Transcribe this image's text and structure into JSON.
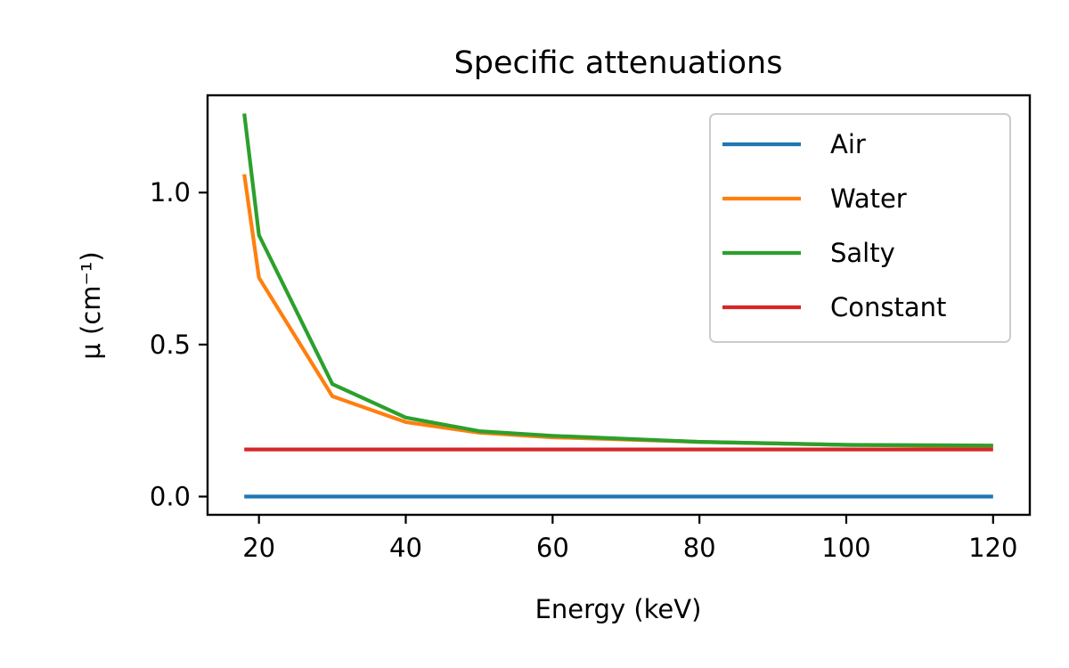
{
  "chart_data": {
    "type": "line",
    "title": "Specific attenuations",
    "xlabel": "Energy (keV)",
    "ylabel": "μ (cm⁻¹)",
    "xlim": [
      13,
      125
    ],
    "ylim": [
      -0.06,
      1.32
    ],
    "xticks": [
      20,
      40,
      60,
      80,
      100,
      120
    ],
    "yticks": [
      0.0,
      0.5,
      1.0
    ],
    "xtick_labels": [
      "20",
      "40",
      "60",
      "80",
      "100",
      "120"
    ],
    "ytick_labels": [
      "0.0",
      "0.5",
      "1.0"
    ],
    "grid": false,
    "legend_position": "top-right",
    "series": [
      {
        "name": "Air",
        "color": "#1f77b4",
        "x": [
          18,
          20,
          30,
          40,
          50,
          60,
          80,
          100,
          120
        ],
        "y": [
          0.0,
          0.0,
          0.0,
          0.0,
          0.0,
          0.0,
          0.0,
          0.0,
          0.0
        ]
      },
      {
        "name": "Water",
        "color": "#ff7f0e",
        "x": [
          18,
          20,
          30,
          40,
          50,
          60,
          80,
          100,
          120
        ],
        "y": [
          1.06,
          0.72,
          0.33,
          0.245,
          0.21,
          0.195,
          0.18,
          0.17,
          0.165
        ]
      },
      {
        "name": "Salty",
        "color": "#2ca02c",
        "x": [
          18,
          20,
          30,
          40,
          50,
          60,
          80,
          100,
          120
        ],
        "y": [
          1.26,
          0.86,
          0.37,
          0.26,
          0.215,
          0.2,
          0.18,
          0.17,
          0.168
        ]
      },
      {
        "name": "Constant",
        "color": "#d62728",
        "x": [
          18,
          120
        ],
        "y": [
          0.155,
          0.155
        ]
      }
    ]
  }
}
